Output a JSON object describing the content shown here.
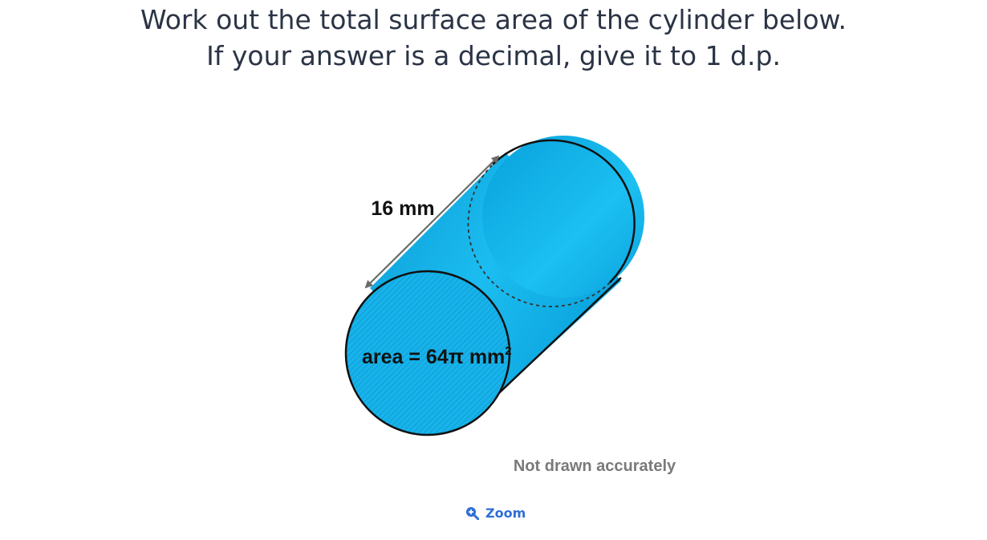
{
  "question": {
    "line1": "Work out the total surface area of the cylinder below.",
    "line2": "If your answer is a decimal, give it to 1 d.p."
  },
  "diagram": {
    "length_label": "16 mm",
    "area_label_main": "area = 64π mm",
    "area_label_sup": "2",
    "note": "Not drawn accurately",
    "colors": {
      "cylinder_fill": "#12b4ec",
      "cylinder_dark": "#0a9fd9",
      "outline": "#111111",
      "arrow": "#6b6b6b",
      "note": "#7a7a7a"
    }
  },
  "zoom": {
    "label": "Zoom",
    "icon": "zoom-in-icon"
  }
}
